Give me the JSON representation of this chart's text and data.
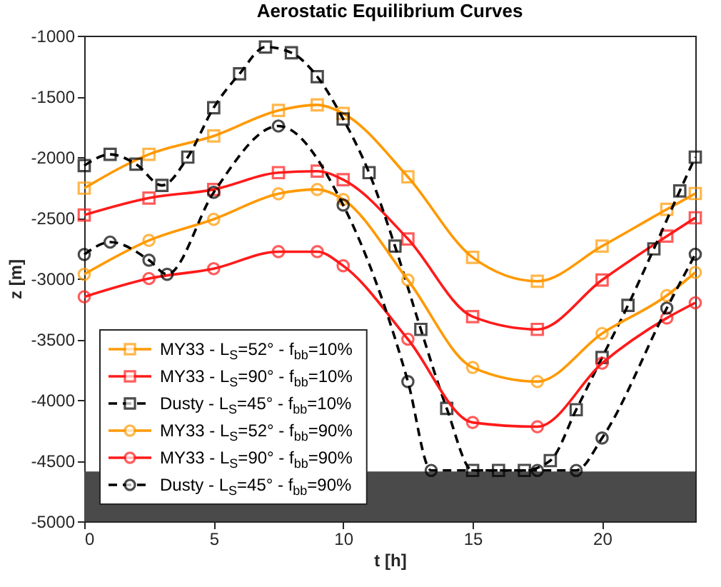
{
  "chart_data": {
    "type": "line",
    "title": "Aerostatic Equilibrium Curves",
    "xlabel": "t [h]",
    "ylabel": "z [m]",
    "xlim": [
      0,
      23.6
    ],
    "xticks": [
      0,
      5,
      10,
      15,
      20
    ],
    "ylim": [
      -5000,
      -1000
    ],
    "yticks": [
      -5000,
      -4500,
      -4000,
      -3500,
      -3000,
      -2500,
      -2000,
      -1500,
      -1000
    ],
    "grid": false,
    "legend": "bottom left",
    "bands": [
      {
        "axis": "y",
        "from": -5000,
        "to": -4590,
        "color": "#4a4a4a"
      }
    ],
    "series": [
      {
        "name": "MY33 - L$_{S}$=52° - f$_{bb}$=10%",
        "color": "#ff9900",
        "marker": "square",
        "line_style": "solid",
        "x": [
          0,
          2.5,
          5,
          7.5,
          9,
          10,
          12.5,
          15,
          17.5,
          20,
          22.5,
          23.6
        ],
        "values": [
          -2256,
          -1977,
          -1826,
          -1616,
          -1570,
          -1640,
          -2163,
          -2826,
          -3023,
          -2733,
          -2430,
          -2300
        ]
      },
      {
        "name": "MY33 - L$_{S}$=90° - f$_{bb}$=10%",
        "color": "#ff1a1a",
        "marker": "square",
        "line_style": "solid",
        "x": [
          0,
          2.5,
          5,
          7.5,
          9,
          10,
          12.5,
          15,
          17.5,
          20,
          22.5,
          23.6
        ],
        "values": [
          -2477,
          -2337,
          -2267,
          -2128,
          -2116,
          -2186,
          -2674,
          -3314,
          -3419,
          -3012,
          -2651,
          -2500
        ]
      },
      {
        "name": "Dusty - L$_{S}$=45° - f$_{bb}$=10%",
        "color": "#000000",
        "marker": "square",
        "line_style": "dashed",
        "x": [
          0,
          1,
          2,
          3,
          4,
          5,
          6,
          7,
          8,
          9,
          10,
          11,
          12,
          13,
          14,
          15,
          16,
          17,
          18,
          19,
          20,
          21,
          22,
          23,
          23.6
        ],
        "values": [
          -2070,
          -1977,
          -2058,
          -2233,
          -2000,
          -1593,
          -1314,
          -1093,
          -1140,
          -1337,
          -1686,
          -2128,
          -2733,
          -3419,
          -4070,
          -4581,
          -4581,
          -4581,
          -4500,
          -4081,
          -3651,
          -3221,
          -2756,
          -2279,
          -2000
        ]
      },
      {
        "name": "MY33 - L$_{S}$=52° - f$_{bb}$=90%",
        "color": "#ff9900",
        "marker": "circle",
        "line_style": "solid",
        "x": [
          0,
          2.5,
          5,
          7.5,
          9,
          10,
          12.5,
          15,
          17.5,
          20,
          22.5,
          23.6
        ],
        "values": [
          -2965,
          -2686,
          -2512,
          -2302,
          -2267,
          -2349,
          -3012,
          -3733,
          -3849,
          -3453,
          -3140,
          -2950
        ]
      },
      {
        "name": "MY33 - L$_{S}$=90° - f$_{bb}$=90%",
        "color": "#ff1a1a",
        "marker": "circle",
        "line_style": "solid",
        "x": [
          0,
          2.5,
          5,
          7.5,
          9,
          10,
          12.5,
          15,
          17.5,
          20,
          22.5,
          23.6
        ],
        "values": [
          -3151,
          -3000,
          -2919,
          -2779,
          -2779,
          -2895,
          -3500,
          -4186,
          -4221,
          -3698,
          -3326,
          -3200
        ]
      },
      {
        "name": "Dusty - L$_{S}$=45° - f$_{bb}$=90%",
        "color": "#000000",
        "marker": "circle",
        "line_style": "dashed",
        "x": [
          0,
          1,
          2.5,
          3.2,
          5,
          7.5,
          10,
          12.5,
          13.4,
          17.5,
          19,
          20,
          22.5,
          23.6
        ],
        "values": [
          -2802,
          -2700,
          -2849,
          -2965,
          -2291,
          -1744,
          -2395,
          -3849,
          -4581,
          -4581,
          -4581,
          -4314,
          -3244,
          -2800
        ]
      }
    ]
  }
}
